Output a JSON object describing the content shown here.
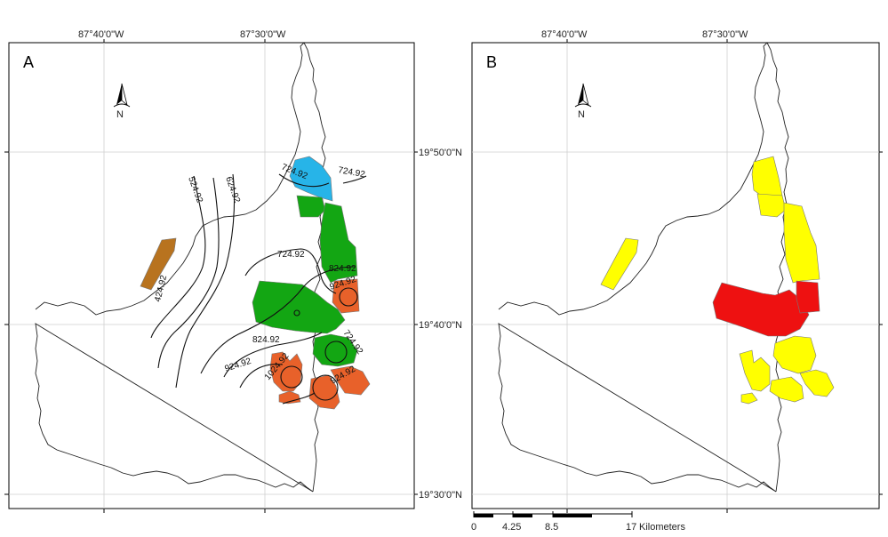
{
  "panels": [
    {
      "letter": "A",
      "lon_labels": [
        "87°40'0\"W",
        "87°30'0\"W"
      ],
      "lat_labels": [
        "19°50'0\"N",
        "19°40'0\"N",
        "19°30'0\"N"
      ],
      "north_label": "N",
      "contour_labels": [
        "524.92",
        "624.92",
        "424.92",
        "724.92",
        "724.92",
        "724.92",
        "824.92",
        "924.92",
        "824.92",
        "924.92",
        "1024.92",
        "724.92",
        "924.92"
      ]
    },
    {
      "letter": "B",
      "lon_labels": [
        "87°40'0\"W",
        "87°30'0\"W"
      ],
      "north_label": "N"
    }
  ],
  "scale_bar": {
    "ticks": [
      "0",
      "4.25",
      "8.5",
      "17"
    ],
    "unit": "Kilometers"
  },
  "colors": {
    "blue_zone": "#27b4e8",
    "green_zone": "#13a613",
    "orange_zone": "#e8612a",
    "brown_zone": "#b8731f",
    "yellow_zone": "#ffff00",
    "red_zone": "#ee1111"
  }
}
